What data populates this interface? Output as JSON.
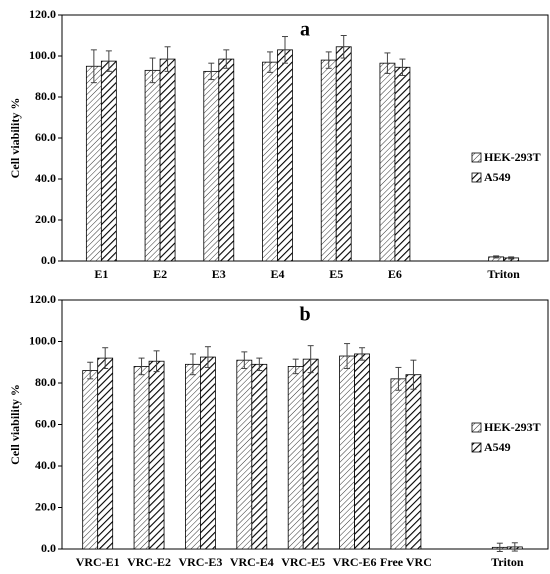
{
  "chart_data": [
    {
      "type": "bar",
      "title": "a",
      "ylabel": "Cell viability %",
      "categories": [
        "E1",
        "E2",
        "E3",
        "E4",
        "E5",
        "E6",
        "Triton"
      ],
      "series": [
        {
          "name": "HEK-293T",
          "color": "#000000",
          "hatch": "light",
          "values": [
            95,
            93,
            92.5,
            97,
            98,
            96.5,
            2
          ],
          "errors": [
            8,
            6,
            4,
            5,
            4,
            5,
            0.5
          ]
        },
        {
          "name": "A549",
          "color": "#000000",
          "hatch": "bold",
          "values": [
            97.5,
            98.5,
            98.5,
            103,
            104.5,
            94.5,
            1.5
          ],
          "errors": [
            5,
            6,
            4.5,
            6.5,
            5.5,
            4,
            0.5
          ]
        }
      ],
      "ylim": [
        0,
        120
      ],
      "yticks": [
        {
          "value": 0,
          "label": "0.0"
        },
        {
          "value": 20,
          "label": "20.0"
        },
        {
          "value": 40,
          "label": "40.0"
        },
        {
          "value": 60,
          "label": "60.0"
        },
        {
          "value": 80,
          "label": "80.0"
        },
        {
          "value": 100,
          "label": "100.0"
        },
        {
          "value": 120,
          "label": "120.0"
        }
      ],
      "legend": "right"
    },
    {
      "type": "bar",
      "title": "b",
      "ylabel": "Cell viability %",
      "categories": [
        "VRC-E1",
        "VRC-E2",
        "VRC-E3",
        "VRC-E4",
        "VRC-E5",
        "VRC-E6",
        "Free VRC",
        "Triton"
      ],
      "series": [
        {
          "name": "HEK-293T",
          "color": "#000000",
          "hatch": "light",
          "values": [
            86,
            88,
            89,
            91,
            88,
            93,
            82,
            0.8
          ],
          "errors": [
            4,
            4,
            5,
            4,
            3.5,
            6,
            5.5,
            2
          ]
        },
        {
          "name": "A549",
          "color": "#000000",
          "hatch": "bold",
          "values": [
            92,
            90.5,
            92.5,
            89,
            91.5,
            94,
            84,
            1
          ],
          "errors": [
            5,
            5,
            5,
            3,
            6.5,
            3,
            7,
            2
          ]
        }
      ],
      "ylim": [
        0,
        120
      ],
      "yticks": [
        {
          "value": 0,
          "label": "0.0"
        },
        {
          "value": 20,
          "label": "20.0"
        },
        {
          "value": 40,
          "label": "40.0"
        },
        {
          "value": 60,
          "label": "60.0"
        },
        {
          "value": 80,
          "label": "80.0"
        },
        {
          "value": 100,
          "label": "100.0"
        },
        {
          "value": 120,
          "label": "120.0"
        }
      ],
      "legend": "right"
    }
  ]
}
